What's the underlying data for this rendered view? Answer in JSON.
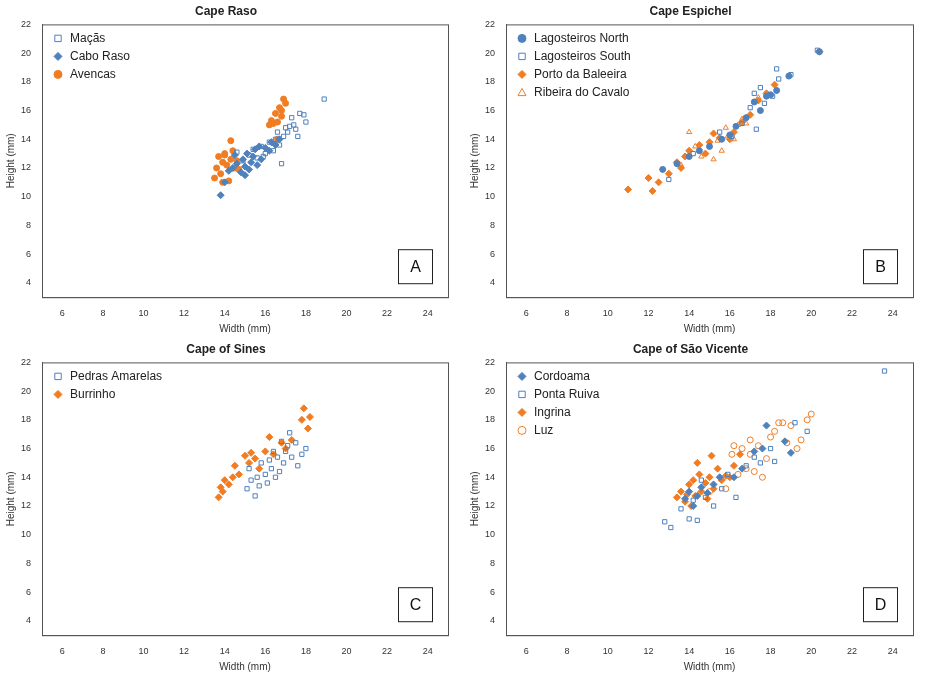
{
  "chart_data": [
    {
      "type": "scatter",
      "title": "Cape Raso",
      "x_label": "Width (mm)",
      "y_label": "Height (mm)",
      "xlim": [
        5,
        25
      ],
      "xticks": [
        6,
        8,
        10,
        12,
        14,
        16,
        18,
        20,
        22,
        24
      ],
      "ylim": [
        3,
        22
      ],
      "yticks": [
        4,
        6,
        8,
        10,
        12,
        14,
        16,
        18,
        20,
        22
      ],
      "grid": false,
      "legend": "upper left",
      "annotation": "A",
      "series": [
        {
          "name": "Maçãs",
          "color": "#4f81bd",
          "marker": "square_open",
          "x": [
            14.6,
            14.9,
            15.2,
            15.4,
            15.6,
            15.8,
            16.0,
            16.2,
            16.4,
            16.5,
            16.7,
            16.8,
            16.9,
            17.0,
            17.1,
            17.3,
            17.4,
            17.5,
            17.6,
            17.7,
            17.9,
            18.0,
            18.9,
            16.6,
            15.9,
            17.2
          ],
          "values": [
            13.1,
            12.5,
            12.9,
            13.3,
            12.7,
            13.5,
            13.0,
            13.8,
            13.2,
            14.0,
            13.6,
            12.3,
            14.2,
            14.8,
            14.5,
            15.5,
            15.0,
            14.7,
            14.2,
            15.8,
            15.7,
            15.2,
            16.8,
            14.5,
            12.8,
            14.9
          ]
        },
        {
          "name": "Cabo Raso",
          "color": "#4f81bd",
          "marker": "diamond",
          "x": [
            13.8,
            14.0,
            14.2,
            14.4,
            14.6,
            14.8,
            14.9,
            15.0,
            15.1,
            15.2,
            15.3,
            15.4,
            15.5,
            15.6,
            15.7,
            15.8,
            16.0,
            16.2,
            16.3,
            16.5,
            16.7,
            15.0,
            14.5
          ],
          "values": [
            10.1,
            11.0,
            11.8,
            12.0,
            12.3,
            11.7,
            12.6,
            12.1,
            13.0,
            11.9,
            12.4,
            12.8,
            13.3,
            12.2,
            13.5,
            12.6,
            13.4,
            13.2,
            13.8,
            13.6,
            14.0,
            11.5,
            12.9
          ]
        },
        {
          "name": "Avencas",
          "color": "#f07d23",
          "marker": "circle",
          "x": [
            13.5,
            13.6,
            13.7,
            13.8,
            13.9,
            14.0,
            14.1,
            14.2,
            14.3,
            14.4,
            14.5,
            14.6,
            14.7,
            14.3,
            13.9,
            14.0,
            16.2,
            16.3,
            16.4,
            16.5,
            16.6,
            16.7,
            16.8,
            16.9,
            17.0,
            16.6,
            16.8
          ],
          "values": [
            11.3,
            12.0,
            12.8,
            11.6,
            12.4,
            13.0,
            12.2,
            11.1,
            12.6,
            13.2,
            12.0,
            12.5,
            11.9,
            13.9,
            11.0,
            12.9,
            15.0,
            15.3,
            15.1,
            15.8,
            14.0,
            16.2,
            15.6,
            16.8,
            16.5,
            15.2,
            16.0
          ]
        }
      ]
    },
    {
      "type": "scatter",
      "title": "Cape Espichel",
      "x_label": "Width (mm)",
      "y_label": "Height (mm)",
      "xlim": [
        5,
        25
      ],
      "xticks": [
        6,
        8,
        10,
        12,
        14,
        16,
        18,
        20,
        22,
        24
      ],
      "ylim": [
        3,
        22
      ],
      "yticks": [
        4,
        6,
        8,
        10,
        12,
        14,
        16,
        18,
        20,
        22
      ],
      "grid": false,
      "legend": "upper left",
      "annotation": "B",
      "series": [
        {
          "name": "Lagosteiros North",
          "color": "#4f81bd",
          "marker": "circle",
          "x": [
            12.7,
            13.4,
            14.0,
            14.5,
            15.0,
            15.6,
            16.3,
            16.8,
            17.2,
            17.5,
            18.0,
            18.3,
            18.9,
            20.4,
            16.0,
            17.8
          ],
          "values": [
            11.9,
            12.3,
            12.8,
            13.2,
            13.5,
            14.0,
            14.9,
            15.5,
            16.6,
            16.0,
            17.1,
            17.4,
            18.4,
            20.1,
            14.3,
            17.0
          ]
        },
        {
          "name": "Lagosteiros South",
          "color": "#4f81bd",
          "marker": "square_open",
          "x": [
            13.0,
            14.2,
            15.5,
            16.1,
            16.6,
            17.0,
            17.2,
            17.5,
            17.7,
            18.1,
            18.3,
            18.4,
            19.0,
            20.3,
            17.3
          ],
          "values": [
            11.2,
            13.0,
            14.5,
            14.2,
            15.1,
            16.2,
            17.2,
            17.6,
            16.5,
            17.0,
            18.9,
            18.2,
            18.5,
            20.2,
            14.7
          ]
        },
        {
          "name": "Porto da Baleeira",
          "color": "#f07d23",
          "marker": "diamond",
          "x": [
            11.0,
            12.0,
            12.2,
            12.5,
            13.0,
            13.4,
            13.6,
            14.0,
            14.5,
            14.8,
            15.0,
            15.2,
            15.5,
            16.0,
            16.2,
            16.6,
            17.0,
            17.4,
            17.8,
            18.2,
            20.4,
            13.8
          ],
          "values": [
            10.5,
            11.3,
            10.4,
            11.0,
            11.6,
            12.4,
            12.0,
            13.2,
            13.6,
            13.0,
            13.8,
            14.4,
            14.1,
            14.0,
            14.5,
            15.2,
            15.7,
            16.7,
            17.2,
            17.8,
            20.1,
            12.8
          ]
        },
        {
          "name": "Ribeira do Cavalo",
          "color": "#f07d23",
          "marker": "triangle_open",
          "x": [
            13.6,
            14.0,
            14.3,
            14.6,
            14.8,
            15.0,
            15.2,
            15.4,
            15.6,
            15.9,
            16.2,
            16.4,
            16.6,
            16.8,
            15.8,
            17.4
          ],
          "values": [
            12.2,
            14.5,
            13.5,
            12.8,
            13.0,
            13.5,
            12.6,
            13.9,
            13.2,
            14.2,
            14.0,
            15.0,
            15.4,
            15.1,
            14.8,
            16.9
          ]
        }
      ]
    },
    {
      "type": "scatter",
      "title": "Cape of Sines",
      "x_label": "Width (mm)",
      "y_label": "Height (mm)",
      "xlim": [
        5,
        25
      ],
      "xticks": [
        6,
        8,
        10,
        12,
        14,
        16,
        18,
        20,
        22,
        24
      ],
      "ylim": [
        3,
        22
      ],
      "yticks": [
        4,
        6,
        8,
        10,
        12,
        14,
        16,
        18,
        20,
        22
      ],
      "grid": false,
      "legend": "upper left",
      "annotation": "C",
      "series": [
        {
          "name": "Pedras Amarelas",
          "color": "#4f81bd",
          "marker": "square_open",
          "x": [
            15.1,
            15.2,
            15.3,
            15.5,
            15.6,
            15.7,
            15.8,
            16.0,
            16.1,
            16.2,
            16.3,
            16.4,
            16.5,
            16.6,
            16.8,
            16.9,
            17.0,
            17.1,
            17.2,
            17.3,
            17.5,
            17.6,
            17.8,
            18.0,
            16.7
          ],
          "values": [
            13.2,
            14.6,
            13.8,
            12.7,
            14.0,
            13.4,
            15.0,
            14.2,
            13.6,
            15.2,
            14.6,
            15.8,
            14.0,
            15.4,
            16.5,
            15.0,
            15.8,
            16.2,
            17.1,
            15.4,
            16.4,
            14.8,
            15.6,
            16.0,
            14.4
          ]
        },
        {
          "name": "Burrinho",
          "color": "#f07d23",
          "marker": "diamond",
          "x": [
            13.7,
            13.8,
            13.9,
            14.0,
            14.2,
            14.4,
            14.5,
            14.7,
            15.0,
            15.2,
            15.3,
            15.5,
            15.7,
            16.0,
            16.4,
            16.8,
            17.0,
            17.3,
            17.8,
            17.9,
            18.1,
            18.2,
            16.2
          ],
          "values": [
            12.6,
            13.3,
            13.0,
            13.8,
            13.5,
            14.0,
            14.8,
            14.2,
            15.5,
            15.0,
            15.7,
            15.3,
            14.6,
            15.8,
            15.6,
            16.4,
            16.0,
            16.6,
            18.0,
            18.8,
            17.4,
            18.2,
            16.8
          ]
        }
      ]
    },
    {
      "type": "scatter",
      "title": "Cape of São Vicente",
      "x_label": "Width (mm)",
      "y_label": "Height (mm)",
      "xlim": [
        5,
        25
      ],
      "xticks": [
        6,
        8,
        10,
        12,
        14,
        16,
        18,
        20,
        22,
        24
      ],
      "ylim": [
        3,
        22
      ],
      "yticks": [
        4,
        6,
        8,
        10,
        12,
        14,
        16,
        18,
        20,
        22
      ],
      "grid": false,
      "legend": "upper left",
      "annotation": "D",
      "series": [
        {
          "name": "Cordoama",
          "color": "#4f81bd",
          "marker": "diamond",
          "x": [
            13.8,
            14.0,
            14.2,
            14.4,
            14.6,
            14.9,
            15.2,
            15.5,
            16.2,
            16.6,
            17.2,
            17.6,
            17.8,
            18.7,
            19.0
          ],
          "values": [
            12.5,
            13.0,
            12.0,
            12.7,
            13.3,
            12.9,
            13.5,
            14.0,
            14.0,
            14.6,
            15.8,
            16.0,
            17.6,
            16.5,
            15.7
          ]
        },
        {
          "name": "Ponta Ruiva",
          "color": "#4f81bd",
          "marker": "square_open",
          "x": [
            12.8,
            13.1,
            13.6,
            14.0,
            14.4,
            14.2,
            14.8,
            15.2,
            15.6,
            15.9,
            16.3,
            16.8,
            17.2,
            17.5,
            18.0,
            18.2,
            19.2,
            19.8,
            23.6,
            14.6
          ],
          "values": [
            10.9,
            10.5,
            11.8,
            11.1,
            11.0,
            12.4,
            12.6,
            12.0,
            13.2,
            14.2,
            12.6,
            14.8,
            15.4,
            15.0,
            16.0,
            15.1,
            17.8,
            17.2,
            21.4,
            13.8
          ]
        },
        {
          "name": "Ingrina",
          "color": "#f07d23",
          "marker": "diamond",
          "x": [
            13.4,
            13.6,
            13.8,
            14.0,
            14.1,
            14.2,
            14.3,
            14.5,
            14.6,
            14.8,
            14.9,
            15.0,
            15.1,
            15.2,
            15.4,
            15.6,
            15.8,
            16.0,
            16.2,
            16.5,
            14.4,
            13.9
          ],
          "values": [
            12.6,
            13.0,
            12.3,
            13.5,
            12.0,
            13.8,
            12.7,
            14.2,
            13.0,
            13.6,
            12.5,
            14.0,
            15.5,
            13.2,
            14.6,
            13.8,
            14.1,
            14.0,
            14.8,
            15.6,
            15.0,
            12.8
          ]
        },
        {
          "name": "Luz",
          "color": "#f07d23",
          "marker": "circle_open",
          "x": [
            15.0,
            15.8,
            16.1,
            16.4,
            16.6,
            16.8,
            17.0,
            17.2,
            17.4,
            17.6,
            17.8,
            18.0,
            18.2,
            18.4,
            18.6,
            18.8,
            19.0,
            19.3,
            19.5,
            19.8,
            20.0,
            16.2,
            17.0
          ],
          "values": [
            13.0,
            13.2,
            15.6,
            14.2,
            16.0,
            14.6,
            15.6,
            14.4,
            16.2,
            14.0,
            15.3,
            16.8,
            17.2,
            17.8,
            17.8,
            16.4,
            17.6,
            16.0,
            16.6,
            18.0,
            18.4,
            16.2,
            16.6
          ]
        }
      ]
    }
  ]
}
